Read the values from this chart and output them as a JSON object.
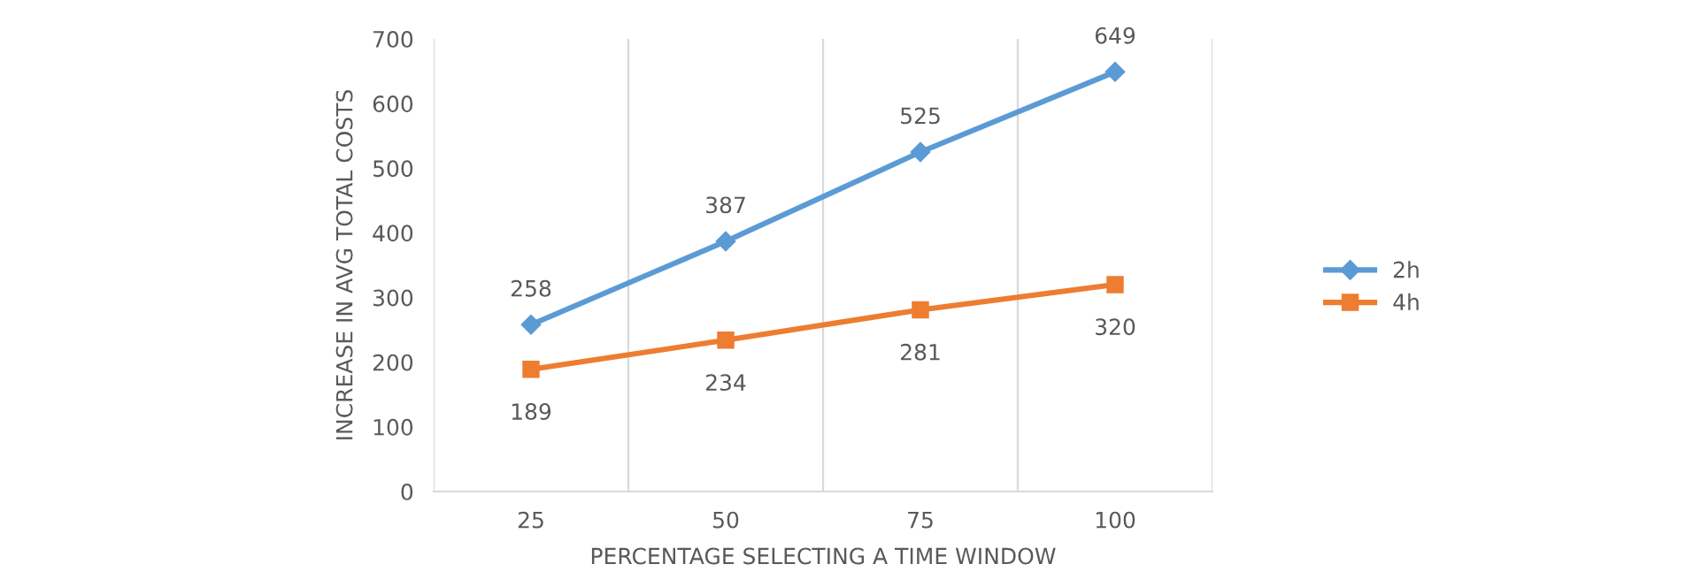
{
  "chart_data": {
    "type": "line",
    "xlabel": "PERCENTAGE SELECTING A TIME WINDOW",
    "ylabel": "INCREASE IN AVG TOTAL COSTS",
    "categories": [
      "25",
      "50",
      "75",
      "100"
    ],
    "series": [
      {
        "name": "2h",
        "color": "#5b9bd5",
        "marker": "diamond",
        "values": [
          258,
          387,
          525,
          649
        ]
      },
      {
        "name": "4h",
        "color": "#ed7d31",
        "marker": "square",
        "values": [
          189,
          234,
          281,
          320
        ]
      }
    ],
    "ylim": [
      0,
      700
    ],
    "yticks": [
      0,
      100,
      200,
      300,
      400,
      500,
      600,
      700
    ],
    "grid": "x",
    "legend": "right",
    "data_labels": true,
    "line_style": "solid"
  }
}
